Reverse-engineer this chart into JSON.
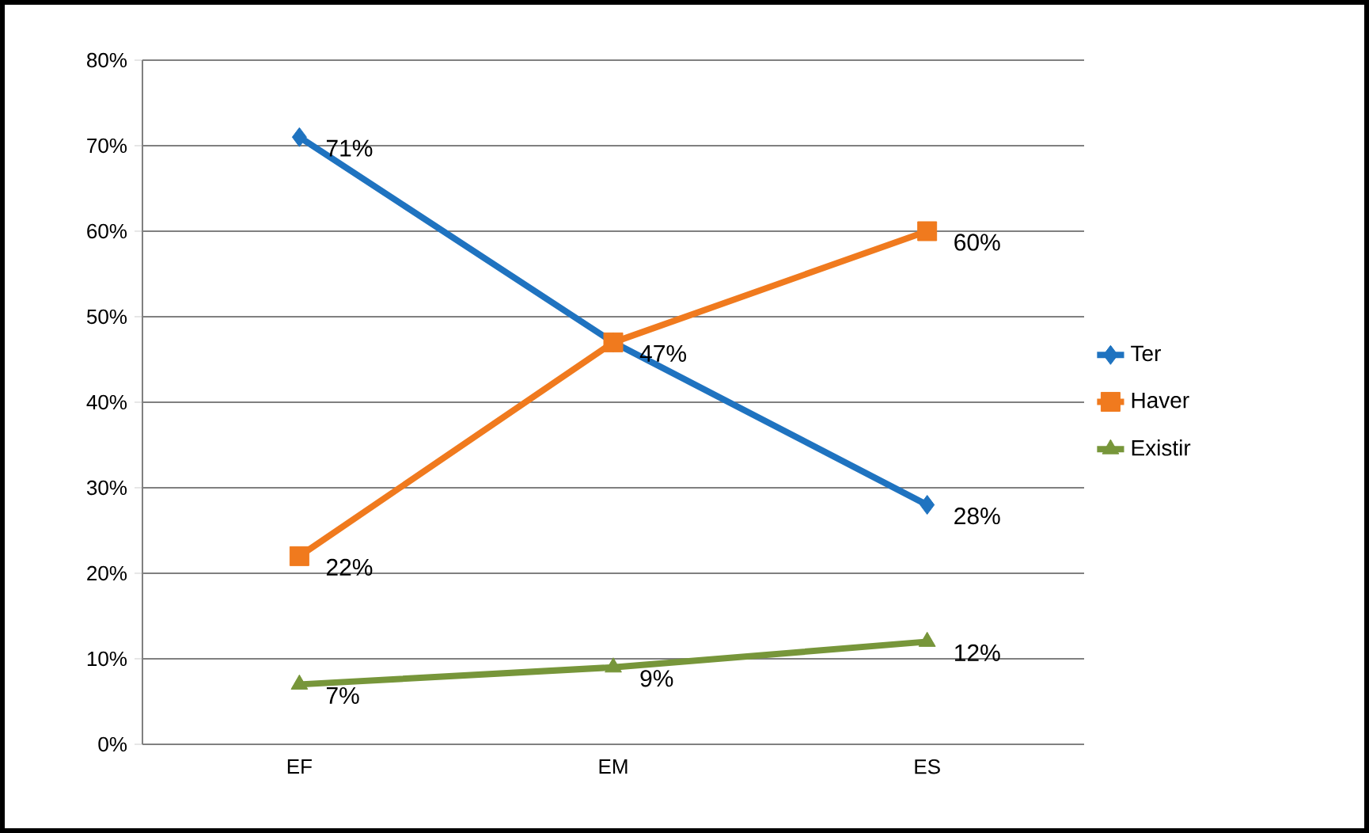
{
  "chart_data": {
    "type": "line",
    "categories": [
      "EF",
      "EM",
      "ES"
    ],
    "series": [
      {
        "name": "Ter",
        "color": "#1f73c0",
        "marker": "diamond",
        "values": [
          71,
          47,
          28
        ],
        "value_labels": [
          "71%",
          null,
          "28%"
        ]
      },
      {
        "name": "Haver",
        "color": "#f07a1e",
        "marker": "square",
        "values": [
          22,
          47,
          60
        ],
        "value_labels": [
          "22%",
          "47%",
          "60%"
        ]
      },
      {
        "name": "Existir",
        "color": "#77963a",
        "marker": "triangle",
        "values": [
          7,
          9,
          12
        ],
        "value_labels": [
          "7%",
          "9%",
          "12%"
        ]
      }
    ],
    "ylim": [
      0,
      80
    ],
    "yticks": [
      {
        "value": 0,
        "label": "0%"
      },
      {
        "value": 10,
        "label": "10%"
      },
      {
        "value": 20,
        "label": "20%"
      },
      {
        "value": 30,
        "label": "30%"
      },
      {
        "value": 40,
        "label": "40%"
      },
      {
        "value": 50,
        "label": "50%"
      },
      {
        "value": 60,
        "label": "60%"
      },
      {
        "value": 70,
        "label": "70%"
      },
      {
        "value": 80,
        "label": "80%"
      }
    ],
    "grid": "y",
    "legend": "right",
    "line_style": "solid"
  }
}
